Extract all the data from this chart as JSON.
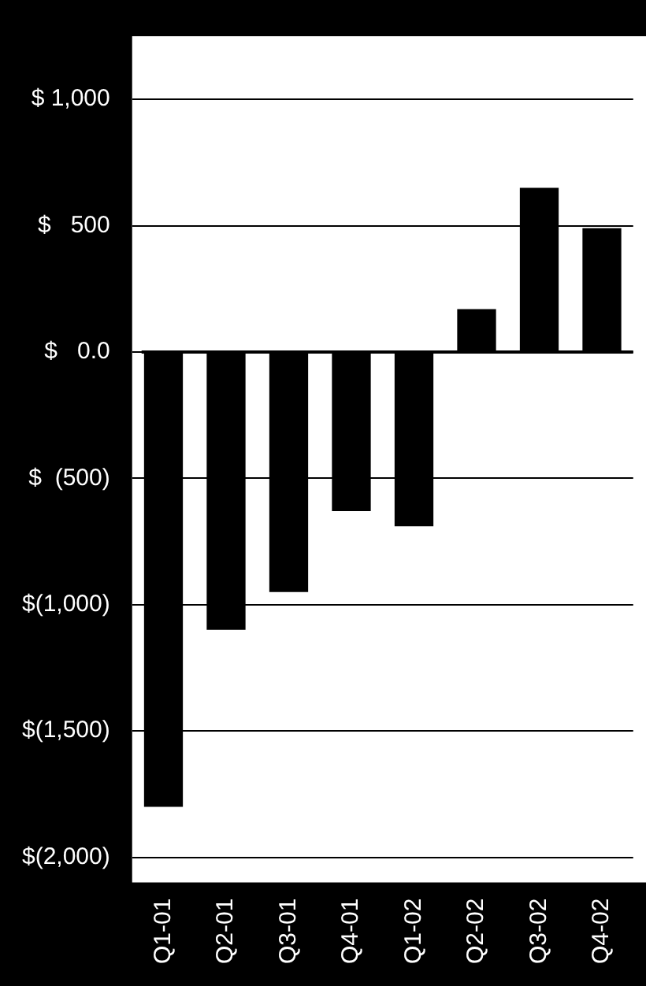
{
  "chart_data": {
    "type": "bar",
    "categories": [
      "Q1-01",
      "Q2-01",
      "Q3-01",
      "Q4-01",
      "Q1-02",
      "Q2-02",
      "Q3-02",
      "Q4-02"
    ],
    "values": [
      -1800,
      -1100,
      -950,
      -630,
      -690,
      170,
      650,
      490
    ],
    "color": "#000000",
    "ylim": [
      -2100,
      1250
    ],
    "yticks": [
      {
        "value": 1000,
        "label": "$ 1,000"
      },
      {
        "value": 500,
        "label": "$   500"
      },
      {
        "value": 0,
        "label": "$   0.0"
      },
      {
        "value": -500,
        "label": "$  (500)"
      },
      {
        "value": -1000,
        "label": "$(1,000)"
      },
      {
        "value": -1500,
        "label": "$(1,500)"
      },
      {
        "value": -2000,
        "label": "$(2,000)"
      }
    ],
    "grid": "y"
  }
}
